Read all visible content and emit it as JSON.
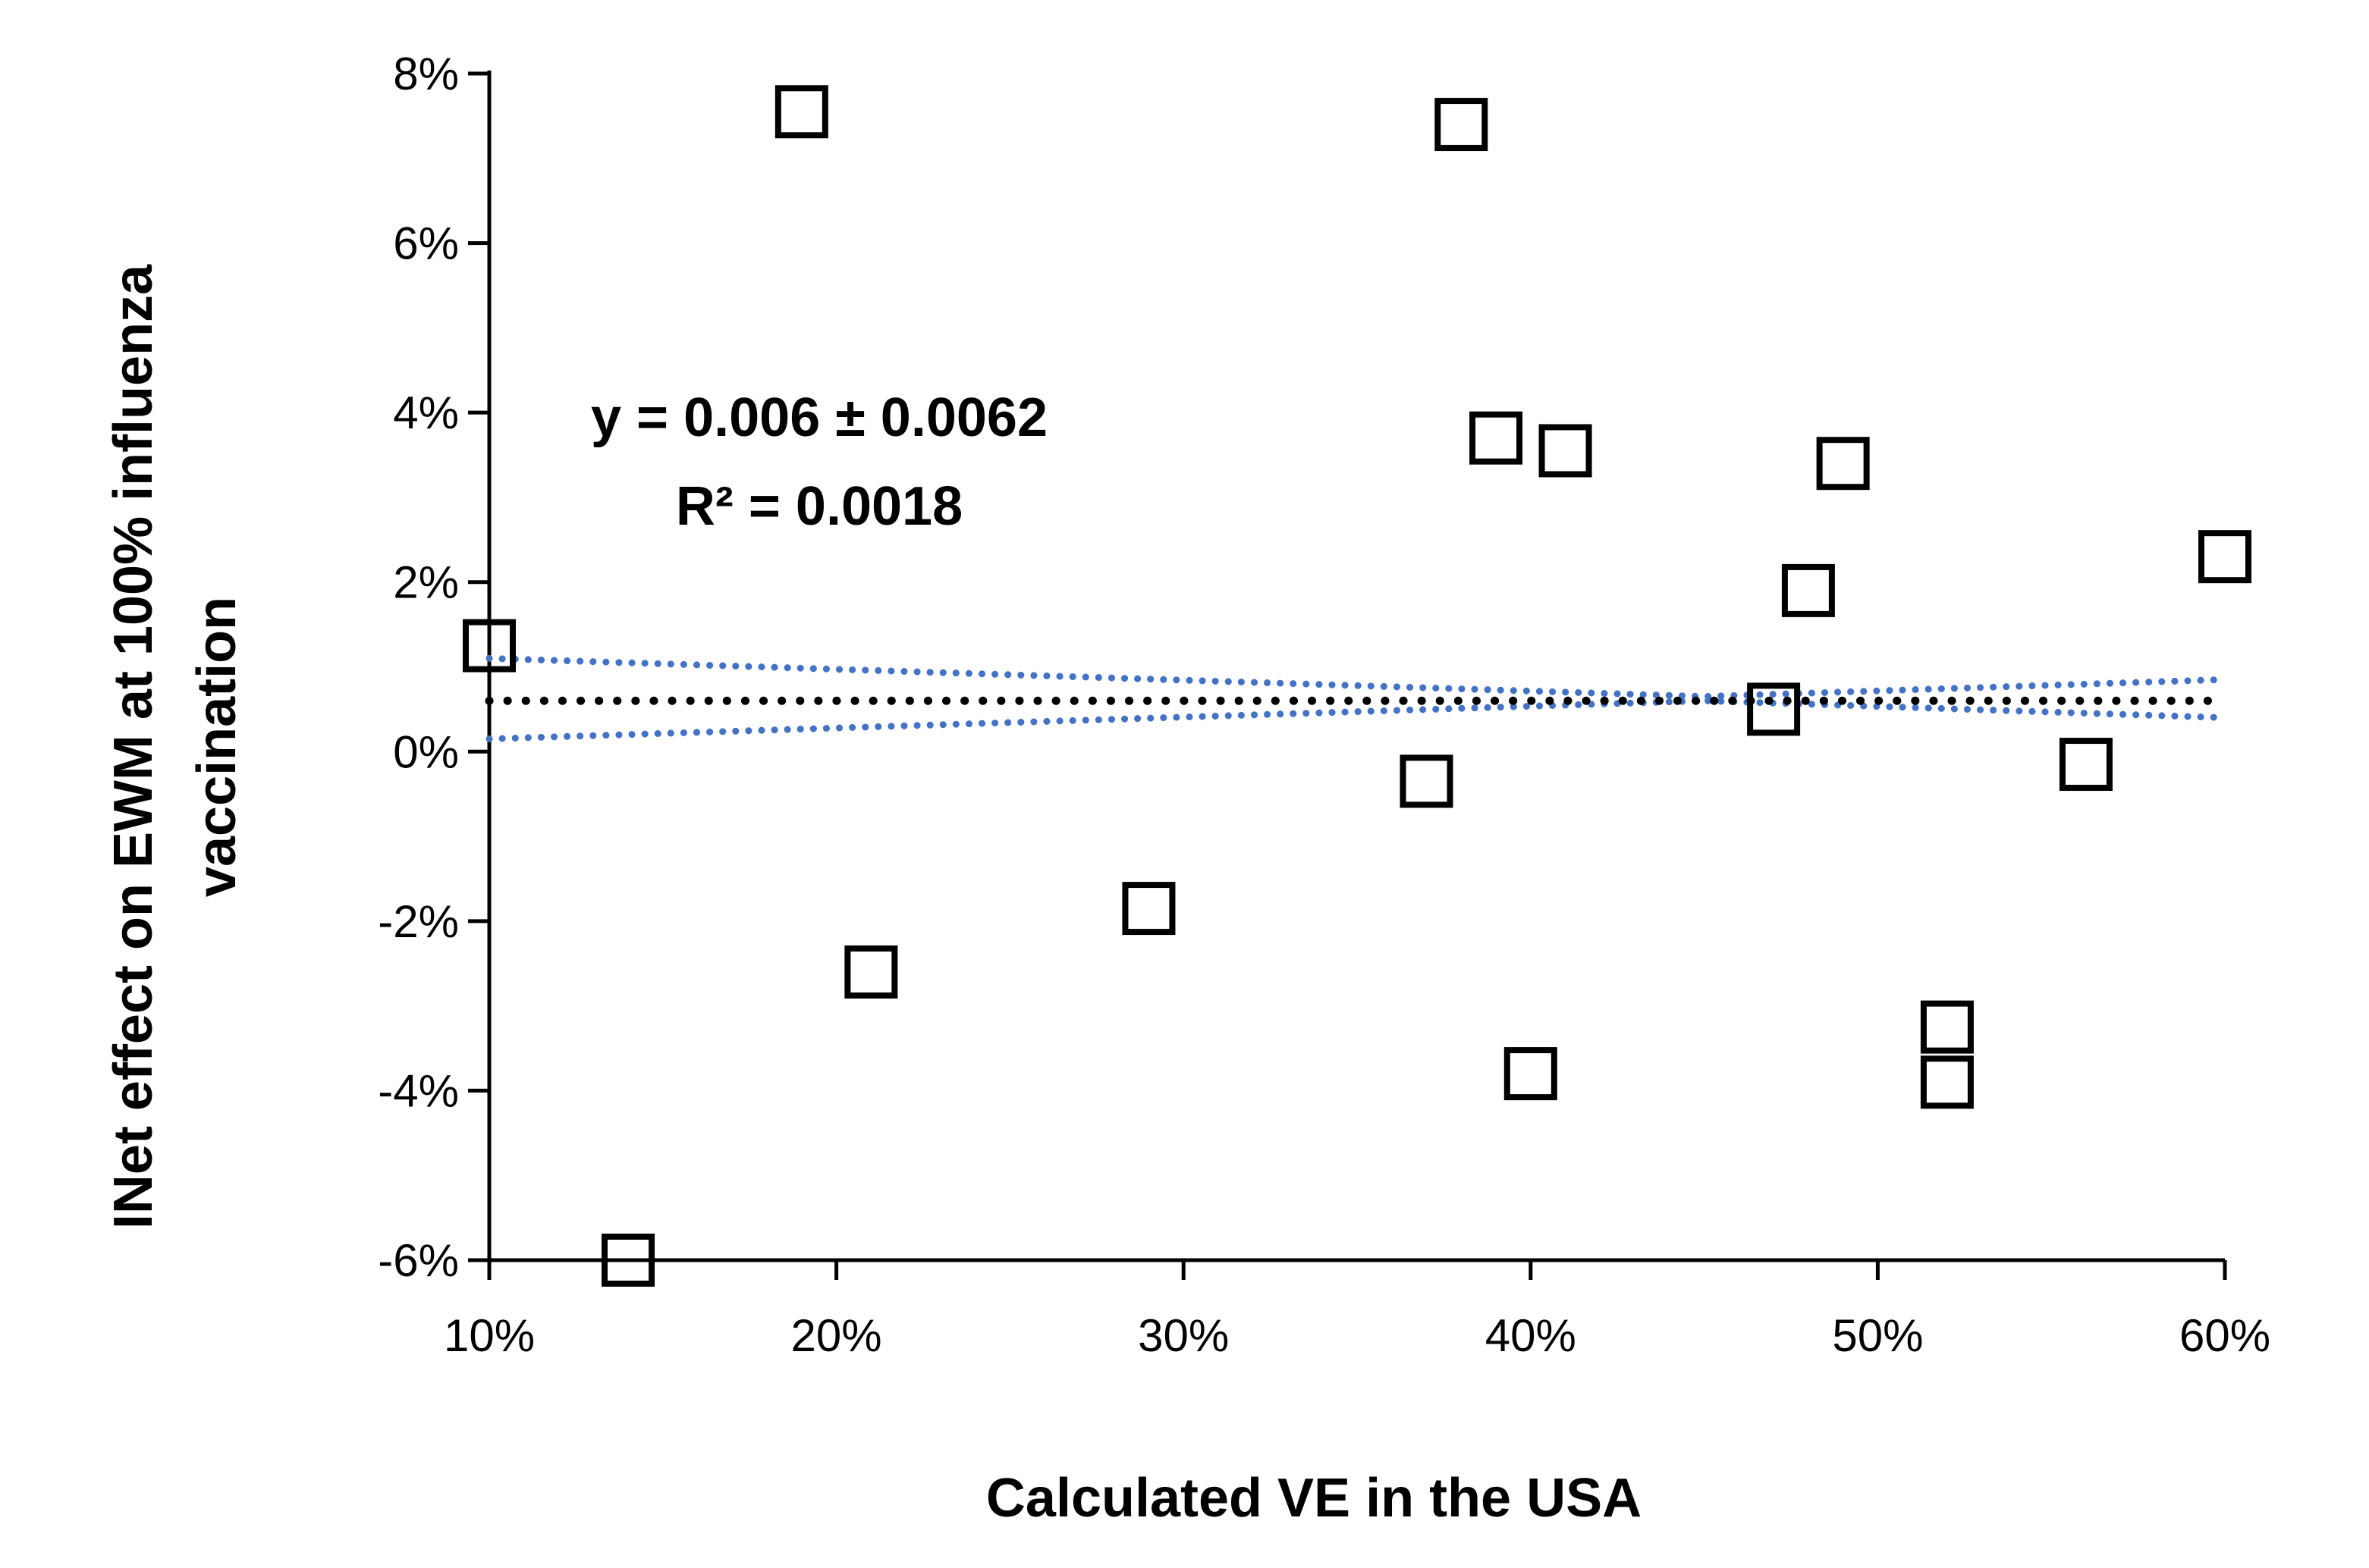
{
  "chart_data": {
    "type": "scatter",
    "xlabel": "Calculated VE in the USA",
    "ylabel_lines": [
      "INet effect on EWM at 100% influenza",
      "vaccination"
    ],
    "xlim": [
      0.1,
      0.6
    ],
    "ylim": [
      -0.06,
      0.08
    ],
    "x_ticks": [
      0.1,
      0.2,
      0.3,
      0.4,
      0.5,
      0.6
    ],
    "x_tick_labels": [
      "10%",
      "20%",
      "30%",
      "40%",
      "50%",
      "60%"
    ],
    "y_ticks": [
      -0.06,
      -0.04,
      -0.02,
      0.0,
      0.02,
      0.04,
      0.06,
      0.08
    ],
    "y_tick_labels": [
      "-6%",
      "-4%",
      "-2%",
      "0%",
      "2%",
      "4%",
      "6%",
      "8%"
    ],
    "grid": false,
    "marker": "hollow-square",
    "points": [
      {
        "x": 0.1,
        "y": 0.0125
      },
      {
        "x": 0.14,
        "y": -0.06
      },
      {
        "x": 0.19,
        "y": 0.0755
      },
      {
        "x": 0.21,
        "y": -0.026
      },
      {
        "x": 0.29,
        "y": -0.0185
      },
      {
        "x": 0.37,
        "y": -0.0035
      },
      {
        "x": 0.38,
        "y": 0.074
      },
      {
        "x": 0.39,
        "y": 0.037
      },
      {
        "x": 0.4,
        "y": -0.038
      },
      {
        "x": 0.41,
        "y": 0.0355
      },
      {
        "x": 0.47,
        "y": 0.005
      },
      {
        "x": 0.48,
        "y": 0.019
      },
      {
        "x": 0.49,
        "y": 0.034
      },
      {
        "x": 0.52,
        "y": -0.0325
      },
      {
        "x": 0.52,
        "y": -0.039
      },
      {
        "x": 0.56,
        "y": -0.0015
      },
      {
        "x": 0.6,
        "y": 0.023
      }
    ],
    "trendline": {
      "y": 0.006,
      "color": "#000000",
      "style": "dotted"
    },
    "confidence_band": {
      "color": "#4472C4",
      "style": "dotted",
      "upper": [
        {
          "x": 0.1,
          "y": 0.011
        },
        {
          "x": 0.45,
          "y": 0.0065
        },
        {
          "x": 0.6,
          "y": 0.0085
        }
      ],
      "lower": [
        {
          "x": 0.1,
          "y": 0.0015
        },
        {
          "x": 0.45,
          "y": 0.006
        },
        {
          "x": 0.6,
          "y": 0.004
        }
      ]
    },
    "annotations": {
      "equation": "y = 0.006 ± 0.0062",
      "r_squared": "R² = 0.0018"
    }
  }
}
